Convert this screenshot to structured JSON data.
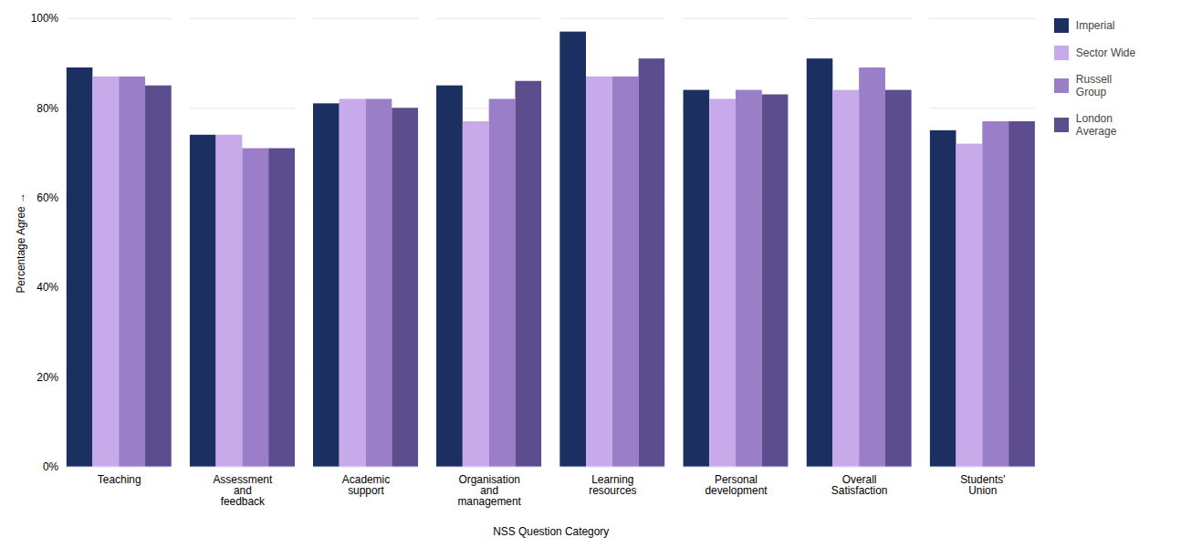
{
  "chart_data": {
    "type": "bar",
    "categories": [
      "Teaching",
      "Assessment\nand\nfeedback",
      "Academic\nsupport",
      "Organisation\nand\nmanagement",
      "Learning\nresources",
      "Personal\ndevelopment",
      "Overall\nSatisfaction",
      "Students'\nUnion"
    ],
    "series": [
      {
        "name": "Imperial",
        "color": "#1b3060",
        "values": [
          89,
          74,
          81,
          85,
          97,
          84,
          91,
          75
        ]
      },
      {
        "name": "Sector Wide",
        "color": "#c8aaeb",
        "values": [
          87,
          74,
          82,
          77,
          87,
          82,
          84,
          72
        ]
      },
      {
        "name": "Russell\nGroup",
        "color": "#9b7ec8",
        "values": [
          87,
          71,
          82,
          82,
          87,
          84,
          89,
          77
        ]
      },
      {
        "name": "London\nAverage",
        "color": "#5c4e8e",
        "values": [
          85,
          71,
          80,
          86,
          91,
          83,
          84,
          77
        ]
      }
    ],
    "xlabel": "NSS Question Category",
    "ylabel": "Percentage Agree",
    "ylim": [
      0,
      100
    ],
    "yticks": [
      {
        "value": 0,
        "label": "0%"
      },
      {
        "value": 20,
        "label": "20%"
      },
      {
        "value": 40,
        "label": "40%"
      },
      {
        "value": 60,
        "label": "60%"
      },
      {
        "value": 80,
        "label": "80%"
      },
      {
        "value": 100,
        "label": "100%"
      }
    ],
    "grid": true,
    "legend": "right"
  }
}
